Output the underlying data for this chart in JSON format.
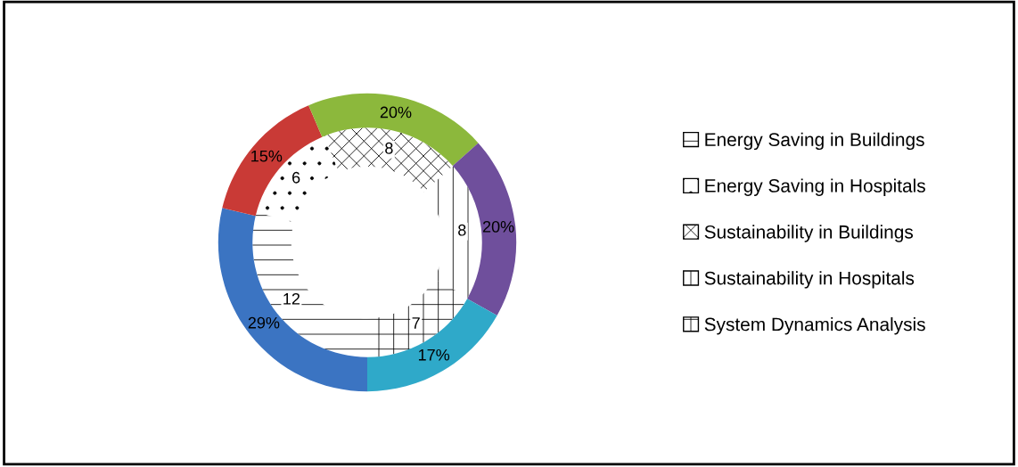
{
  "chart_data": {
    "type": "donut",
    "categories": [
      "Energy Saving in Buildings",
      "Energy Saving in Hospitals",
      "Sustainability in Buildings",
      "Sustainability in Hospitals",
      "System Dynamics Analysis"
    ],
    "series": [
      {
        "values": [
          12,
          6,
          8,
          8,
          7
        ],
        "color": "#ffffff"
      },
      {
        "values": [
          29,
          15,
          20,
          20,
          17
        ],
        "colors": [
          "#3b74c2",
          "#c93a36",
          "#8cb83c",
          "#6f4f9c",
          "#2fa9c9"
        ],
        "value_labels": [
          "29%",
          "15%",
          "20%",
          "20%",
          "17%"
        ]
      }
    ],
    "data_labels": true,
    "legend": "right"
  }
}
